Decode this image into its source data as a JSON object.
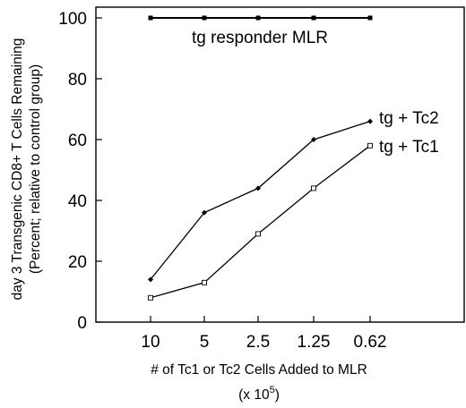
{
  "chart_data": {
    "type": "line",
    "categories": [
      "10",
      "5",
      "2.5",
      "1.25",
      "0.62"
    ],
    "ylim": [
      0,
      100
    ],
    "yticks": [
      "0",
      "20",
      "40",
      "60",
      "80",
      "100"
    ],
    "ylabel_line1": "day 3 Transgenic CD8+ T Cells Remaining",
    "ylabel_line2": "(Percent; relative to control group)",
    "xlabel_line1": "# of Tc1 or Tc2 Cells Added to MLR",
    "xlabel_line2_prefix": "(x 10",
    "xlabel_line2_exp": "5",
    "xlabel_line2_suffix": ")",
    "grid": false,
    "series": [
      {
        "name": "tg responder MLR",
        "values": [
          100,
          100,
          100,
          100,
          100
        ],
        "marker": "filled-square",
        "color": "#000000"
      },
      {
        "name": "tg + Tc2",
        "values": [
          14,
          36,
          44,
          60,
          66
        ],
        "marker": "diamond",
        "color": "#000000"
      },
      {
        "name": "tg + Tc1",
        "values": [
          8,
          13,
          29,
          44,
          58
        ],
        "marker": "open-square",
        "color": "#000000"
      }
    ]
  }
}
